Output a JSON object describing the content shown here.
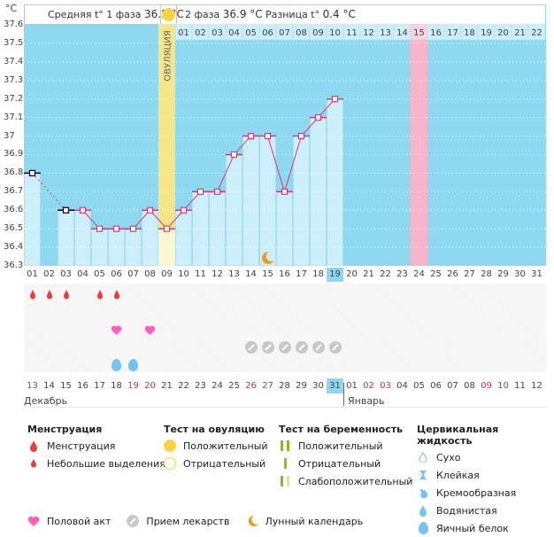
{
  "header": {
    "unit": "°C",
    "phase1_label": "Средняя t° 1 фаза",
    "phase1_value": "36.5 °C",
    "phase2_label": "2 фаза",
    "phase2_value": "36.9 °C",
    "diff_label": "Разница t°",
    "diff_value": "0.4 °C"
  },
  "ovulation_label": "ОВУЛЯЦИЯ",
  "cycle_days_top": [
    "01",
    "02",
    "03",
    "04",
    "05",
    "06",
    "07",
    "08",
    "09",
    "10",
    "11",
    "12",
    "13",
    "14",
    "15",
    "16",
    "17",
    "18",
    "19",
    "20",
    "21",
    "22"
  ],
  "cycle_days_top_highlight": "15",
  "colors": {
    "sky": "#8fd8f2",
    "bar": "#cdeefb",
    "line": "#e8356e",
    "ovulation": "#f7e58a",
    "expected": "#f8b4c8",
    "today": "#8fd6f0",
    "menstruation": "#f0393d",
    "heart": "#ff5fb5",
    "pill": "#c8c8c8",
    "moon": "#f59a17",
    "fluid": "#74c4f0",
    "pregnancy": "#8cbd1b"
  },
  "chart_data": {
    "type": "bar",
    "title": "",
    "xlabel": "",
    "ylabel": "°C",
    "ylim": [
      36.3,
      37.6
    ],
    "yticks": [
      "37.6",
      "37.5",
      "37.4",
      "37.3",
      "37.2",
      "37.1",
      "37",
      "36.9",
      "36.8",
      "36.7",
      "36.6",
      "36.5",
      "36.4",
      "36.3"
    ],
    "categories": [
      "01",
      "02",
      "03",
      "04",
      "05",
      "06",
      "07",
      "08",
      "09",
      "10",
      "11",
      "12",
      "13",
      "14",
      "15",
      "16",
      "17",
      "18",
      "19",
      "20",
      "21",
      "22",
      "23",
      "24",
      "25",
      "26",
      "27",
      "28",
      "29",
      "30",
      "31"
    ],
    "series": [
      {
        "name": "Базальная температура",
        "values": [
          36.8,
          null,
          36.6,
          36.6,
          36.5,
          36.5,
          36.5,
          36.6,
          36.5,
          36.6,
          36.7,
          36.7,
          36.9,
          37.0,
          37.0,
          36.7,
          37.0,
          37.1,
          37.2,
          null,
          null,
          null,
          null,
          null,
          null,
          null,
          null,
          null,
          null,
          null,
          null
        ]
      }
    ],
    "ovulation_day": "09",
    "expected_menstruation_day": "24",
    "today_day": "19",
    "excluded_points": [
      "01",
      "03"
    ]
  },
  "events": {
    "menstruation_days": [
      "01",
      "02",
      "03",
      "05",
      "06"
    ],
    "intercourse_days": [
      "06",
      "08"
    ],
    "medication_days": [
      "14",
      "15",
      "16",
      "17",
      "18",
      "19"
    ],
    "egg_white_days": [
      "06",
      "07"
    ],
    "moon_day": "15"
  },
  "calendar": {
    "days": [
      {
        "d": "13",
        "red": true
      },
      {
        "d": "14"
      },
      {
        "d": "15"
      },
      {
        "d": "16"
      },
      {
        "d": "17"
      },
      {
        "d": "18"
      },
      {
        "d": "19",
        "red": true
      },
      {
        "d": "20",
        "red": true
      },
      {
        "d": "21"
      },
      {
        "d": "22"
      },
      {
        "d": "23"
      },
      {
        "d": "24"
      },
      {
        "d": "25"
      },
      {
        "d": "26",
        "red": true
      },
      {
        "d": "27",
        "red": true
      },
      {
        "d": "28"
      },
      {
        "d": "29"
      },
      {
        "d": "30"
      },
      {
        "d": "31",
        "hl": true
      },
      {
        "d": "01"
      },
      {
        "d": "02",
        "red": true
      },
      {
        "d": "03",
        "red": true
      },
      {
        "d": "04"
      },
      {
        "d": "05"
      },
      {
        "d": "06"
      },
      {
        "d": "07"
      },
      {
        "d": "08"
      },
      {
        "d": "09",
        "red": true
      },
      {
        "d": "10",
        "red": true
      },
      {
        "d": "11"
      },
      {
        "d": "12"
      }
    ],
    "month1": "Декабрь",
    "month2": "Январь"
  },
  "legend": {
    "menstruation": {
      "title": "Менструация",
      "items": [
        "Менструация",
        "Небольшие выделения"
      ]
    },
    "ovulation_test": {
      "title": "Тест на овуляцию",
      "items": [
        "Положительный",
        "Отрицательный"
      ]
    },
    "pregnancy_test": {
      "title": "Тест на беременность",
      "items": [
        "Положительный",
        "Отрицательный",
        "Слабоположительный"
      ]
    },
    "cervical_fluid": {
      "title": "Цервикальная жидкость",
      "items": [
        "Сухо",
        "Клейкая",
        "Кремообразная",
        "Водянистая",
        "Яичный белок"
      ]
    },
    "bottom": [
      "Половой акт",
      "Прием лекарств",
      "Лунный календарь"
    ]
  }
}
